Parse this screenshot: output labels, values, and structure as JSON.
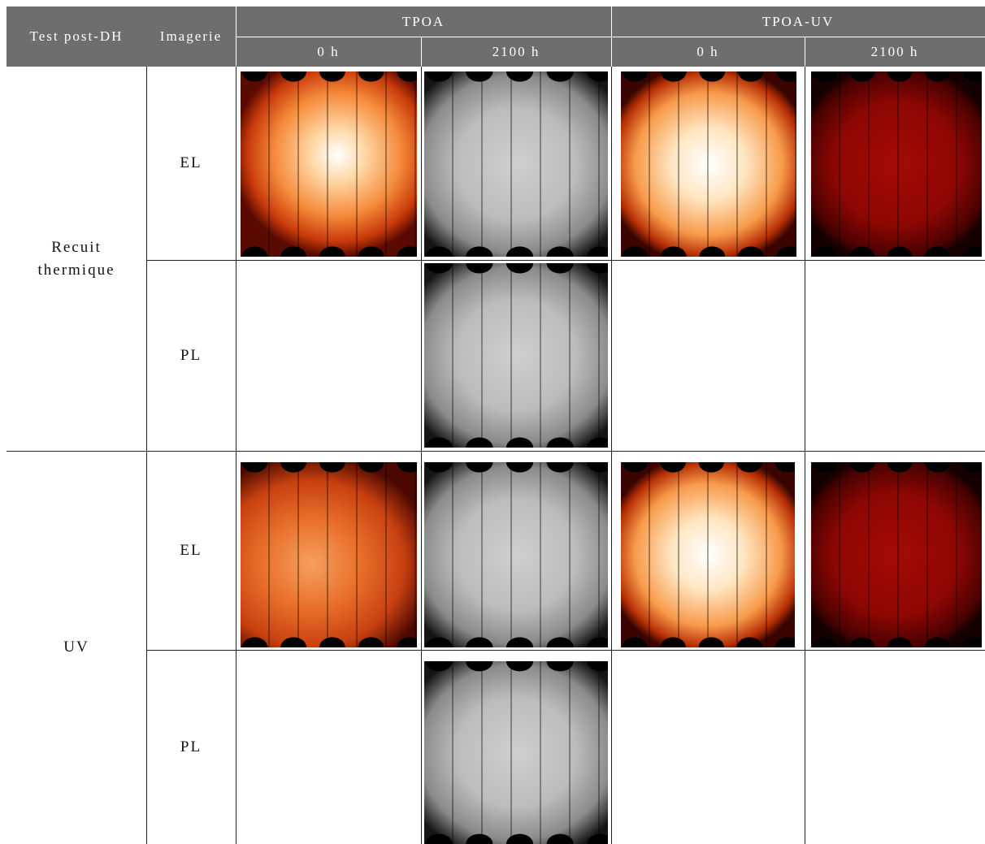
{
  "table": {
    "header": {
      "test": "Test post-DH",
      "imaging": "Imagerie",
      "groups": [
        "TPOA",
        "TPOA-UV"
      ],
      "times": [
        "0 h",
        "2100 h",
        "0 h",
        "2100 h"
      ]
    },
    "rows": [
      {
        "test": "Recuit thermique",
        "imaging": [
          "EL",
          "PL"
        ]
      },
      {
        "test": "UV",
        "imaging": [
          "EL",
          "PL"
        ]
      }
    ]
  }
}
